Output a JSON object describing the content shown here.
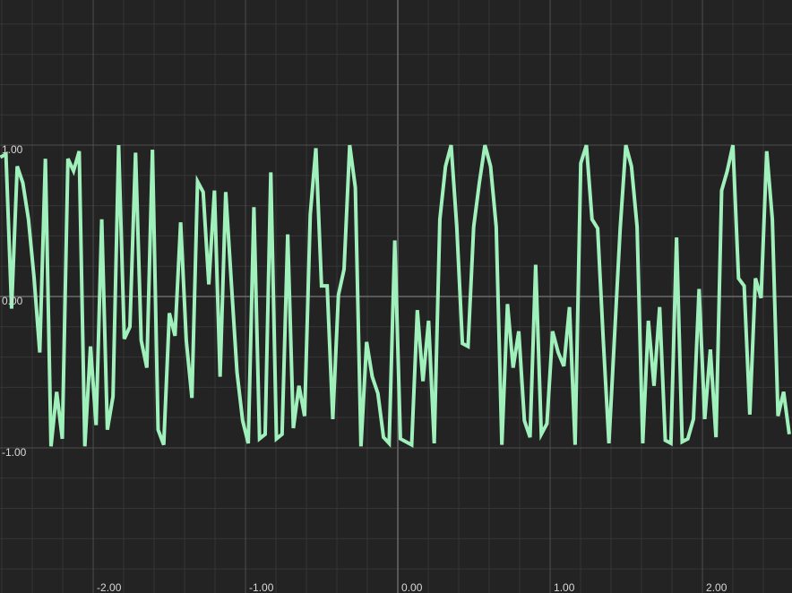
{
  "chart_data": {
    "type": "line",
    "x": [
      -2.61,
      -2.573,
      -2.536,
      -2.499,
      -2.462,
      -2.425,
      -2.388,
      -2.351,
      -2.314,
      -2.277,
      -2.24,
      -2.203,
      -2.166,
      -2.129,
      -2.092,
      -2.055,
      -2.018,
      -1.981,
      -1.944,
      -1.907,
      -1.87,
      -1.833,
      -1.796,
      -1.759,
      -1.722,
      -1.685,
      -1.648,
      -1.611,
      -1.574,
      -1.537,
      -1.5,
      -1.463,
      -1.426,
      -1.389,
      -1.352,
      -1.315,
      -1.278,
      -1.241,
      -1.204,
      -1.167,
      -1.13,
      -1.093,
      -1.056,
      -1.019,
      -0.982,
      -0.945,
      -0.908,
      -0.871,
      -0.834,
      -0.797,
      -0.76,
      -0.723,
      -0.686,
      -0.649,
      -0.612,
      -0.575,
      -0.538,
      -0.501,
      -0.464,
      -0.427,
      -0.39,
      -0.353,
      -0.316,
      -0.279,
      -0.242,
      -0.205,
      -0.168,
      -0.131,
      -0.094,
      -0.057,
      -0.02,
      0.017,
      0.054,
      0.091,
      0.128,
      0.165,
      0.202,
      0.239,
      0.276,
      0.313,
      0.35,
      0.387,
      0.424,
      0.461,
      0.498,
      0.535,
      0.572,
      0.609,
      0.646,
      0.683,
      0.72,
      0.757,
      0.794,
      0.831,
      0.868,
      0.905,
      0.942,
      0.979,
      1.016,
      1.053,
      1.09,
      1.127,
      1.164,
      1.201,
      1.238,
      1.275,
      1.312,
      1.349,
      1.386,
      1.423,
      1.46,
      1.497,
      1.534,
      1.571,
      1.608,
      1.645,
      1.682,
      1.719,
      1.756,
      1.793,
      1.83,
      1.867,
      1.904,
      1.941,
      1.978,
      2.015,
      2.052,
      2.089,
      2.126,
      2.163,
      2.2,
      2.237,
      2.274,
      2.311,
      2.348,
      2.385,
      2.422,
      2.459,
      2.496,
      2.533,
      2.57
    ],
    "series": [
      {
        "color": "#a0f0bc",
        "values": [
          0.92,
          0.94,
          -0.08,
          0.86,
          0.75,
          0.51,
          0.12,
          -0.37,
          0.91,
          -0.99,
          -0.63,
          -0.94,
          0.91,
          0.83,
          0.96,
          -0.99,
          -0.33,
          -0.85,
          0.51,
          -0.88,
          -0.66,
          1.0,
          -0.28,
          -0.2,
          0.95,
          -0.29,
          -0.47,
          0.97,
          -0.88,
          -0.98,
          -0.11,
          -0.26,
          0.49,
          -0.29,
          -0.67,
          0.76,
          0.69,
          0.08,
          0.7,
          -0.53,
          0.69,
          0.09,
          -0.5,
          -0.82,
          -0.97,
          0.59,
          -0.94,
          -0.91,
          0.82,
          -0.94,
          -0.91,
          0.41,
          -0.87,
          -0.59,
          -0.79,
          0.54,
          0.98,
          0.07,
          0.07,
          -0.81,
          0.01,
          0.18,
          1.0,
          0.72,
          -0.99,
          -0.3,
          -0.53,
          -0.64,
          -0.93,
          -0.97,
          0.37,
          -0.94,
          -0.96,
          -0.98,
          -0.09,
          -0.56,
          -0.16,
          -0.97,
          0.51,
          0.86,
          1.0,
          0.46,
          -0.31,
          -0.33,
          0.46,
          0.75,
          1.0,
          0.86,
          0.46,
          -0.98,
          -0.05,
          -0.47,
          -0.23,
          -0.82,
          -0.93,
          0.21,
          -0.91,
          -0.84,
          -0.23,
          -0.37,
          -0.46,
          -0.07,
          -0.98,
          0.88,
          1.0,
          0.51,
          0.45,
          -0.29,
          -0.97,
          -0.26,
          0.45,
          1.0,
          0.86,
          0.46,
          -0.97,
          -0.16,
          -0.59,
          -0.07,
          -0.95,
          -0.97,
          0.39,
          -0.96,
          -0.94,
          -0.81,
          0.05,
          -0.81,
          -0.35,
          -0.93,
          0.7,
          0.83,
          1.0,
          0.12,
          0.07,
          -0.78,
          0.12,
          -0.01,
          0.96,
          0.51,
          -0.79,
          -0.63,
          -0.91
        ]
      }
    ],
    "xlim": [
      -2.612,
      2.588
    ],
    "ylim": [
      -1.959,
      1.959
    ],
    "xticks": [
      {
        "value": -2,
        "label": "-2.00"
      },
      {
        "value": -1,
        "label": "-1.00"
      },
      {
        "value": 0,
        "label": "0.00"
      },
      {
        "value": 1,
        "label": "1.00"
      },
      {
        "value": 2,
        "label": "2.00"
      }
    ],
    "yticks": [
      {
        "value": -1,
        "label": "-1.00"
      },
      {
        "value": 0,
        "label": "0.00"
      },
      {
        "value": 1,
        "label": "1.00"
      }
    ],
    "xminor": [
      -2.6,
      -2.4,
      -2.2,
      -1.8,
      -1.6,
      -1.4,
      -1.2,
      -0.8,
      -0.6,
      -0.4,
      -0.2,
      0.2,
      0.4,
      0.6,
      0.8,
      1.2,
      1.4,
      1.6,
      1.8,
      2.2,
      2.4
    ],
    "yminor": [
      -1.8,
      -1.6,
      -1.4,
      -1.2,
      -0.8,
      -0.6,
      -0.4,
      -0.2,
      0.2,
      0.4,
      0.6,
      0.8,
      1.2,
      1.4,
      1.6,
      1.8
    ],
    "grid": true
  }
}
